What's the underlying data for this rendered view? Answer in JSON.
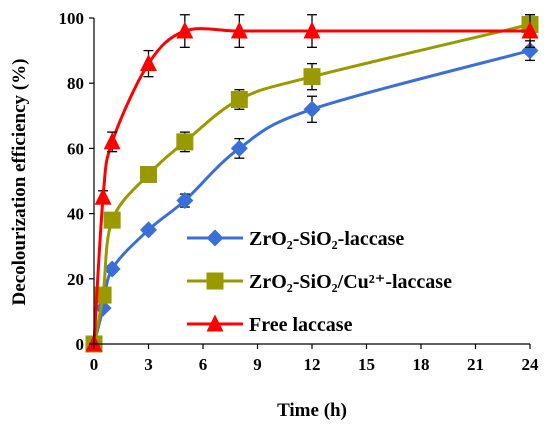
{
  "chart_data": {
    "type": "line",
    "xlabel": "Time (h)",
    "ylabel": "Decolourization efficiency (%)",
    "xlim": [
      0,
      24
    ],
    "ylim": [
      0,
      100
    ],
    "xticks": [
      0,
      3,
      6,
      9,
      12,
      15,
      18,
      21,
      24
    ],
    "yticks": [
      0,
      20,
      40,
      60,
      80,
      100
    ],
    "grid": false,
    "legend_position": "right",
    "series": [
      {
        "name": "ZrO₂-SiO₂-laccase",
        "color": "#3A6FD8",
        "marker": "diamond",
        "x": [
          0,
          0.5,
          1,
          3,
          5,
          8,
          12,
          24
        ],
        "y": [
          0,
          11,
          23,
          35,
          44,
          60,
          72,
          90
        ],
        "error": [
          0,
          0,
          1,
          1,
          2,
          3,
          4,
          3
        ]
      },
      {
        "name": "ZrO₂-SiO₂/Cu²⁺-laccase",
        "color": "#999900",
        "marker": "square",
        "x": [
          0,
          0.5,
          1,
          3,
          5,
          8,
          12,
          24
        ],
        "y": [
          0,
          15,
          38,
          52,
          62,
          75,
          82,
          98
        ],
        "error": [
          0,
          0,
          1,
          2,
          3,
          3,
          4,
          3
        ]
      },
      {
        "name": "Free laccase",
        "color": "#FF0000",
        "marker": "triangle",
        "x": [
          0,
          0.5,
          1,
          3,
          5,
          8,
          12,
          24
        ],
        "y": [
          0,
          45,
          62,
          86,
          96,
          96,
          96,
          96
        ],
        "error": [
          0,
          2,
          3,
          4,
          5,
          5,
          5,
          5
        ]
      }
    ]
  }
}
